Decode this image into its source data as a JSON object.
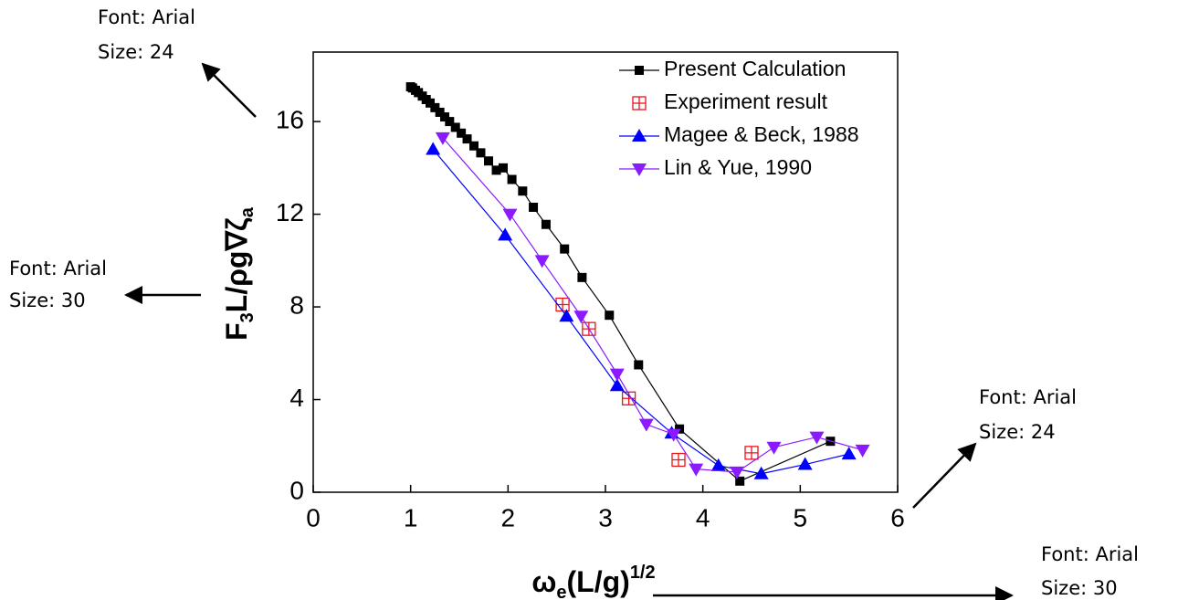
{
  "chart_data": {
    "type": "line",
    "x_label_parts": [
      "ω",
      "e",
      "(L/g)",
      "1/2"
    ],
    "y_label_parts": [
      "F",
      "3",
      "L/ρg∇ζ",
      "a"
    ],
    "xlim": [
      0,
      6
    ],
    "ylim": [
      0,
      19
    ],
    "xticks": [
      0,
      1,
      2,
      3,
      4,
      5,
      6
    ],
    "yticks": [
      0,
      4,
      8,
      12,
      16
    ],
    "series": [
      {
        "name": "Present Calculation",
        "color": "#000000",
        "marker": "square",
        "line": true,
        "x": [
          1.0,
          1.02,
          1.05,
          1.08,
          1.12,
          1.16,
          1.2,
          1.25,
          1.3,
          1.35,
          1.4,
          1.46,
          1.52,
          1.58,
          1.65,
          1.72,
          1.8,
          1.88,
          1.95,
          2.04,
          2.15,
          2.26,
          2.39,
          2.58,
          2.76,
          3.04,
          3.34,
          3.76,
          4.38,
          5.31
        ],
        "values": [
          17.5,
          17.45,
          17.35,
          17.25,
          17.1,
          16.95,
          16.8,
          16.6,
          16.4,
          16.2,
          16.0,
          15.75,
          15.5,
          15.25,
          14.95,
          14.65,
          14.3,
          13.9,
          14.0,
          13.5,
          13.0,
          12.3,
          11.56,
          10.5,
          9.27,
          7.64,
          5.5,
          2.73,
          0.48,
          2.2
        ]
      },
      {
        "name": "Experiment result",
        "color": "#e8141c",
        "marker": "boxplus",
        "line": false,
        "x": [
          2.56,
          2.83,
          3.24,
          3.75,
          4.5
        ],
        "values": [
          8.1,
          7.05,
          4.05,
          1.4,
          1.7
        ]
      },
      {
        "name": "Magee & Beck, 1988",
        "color": "#0000ff",
        "marker": "triup",
        "line": true,
        "x": [
          1.23,
          1.97,
          2.6,
          3.12,
          3.68,
          4.16,
          4.6,
          5.05,
          5.5
        ],
        "values": [
          14.8,
          11.1,
          7.6,
          4.6,
          2.55,
          1.15,
          0.8,
          1.2,
          1.65
        ]
      },
      {
        "name": "Lin & Yue, 1990",
        "color": "#8b1aff",
        "marker": "tridown",
        "line": true,
        "x": [
          1.33,
          2.02,
          2.35,
          2.75,
          3.12,
          3.42,
          3.7,
          3.93,
          4.35,
          4.73,
          5.17,
          5.64
        ],
        "values": [
          15.3,
          12.0,
          10.0,
          7.6,
          5.1,
          2.93,
          2.5,
          1.0,
          0.87,
          1.94,
          2.38,
          1.82
        ]
      }
    ]
  },
  "annotations": [
    {
      "lines": [
        "Font: Arial",
        "Size: 24"
      ]
    },
    {
      "lines": [
        "Font: Arial",
        "Size: 30"
      ]
    },
    {
      "lines": [
        "Font: Arial",
        "Size: 24"
      ]
    },
    {
      "lines": [
        "Font: Arial",
        "Size: 30"
      ]
    }
  ]
}
